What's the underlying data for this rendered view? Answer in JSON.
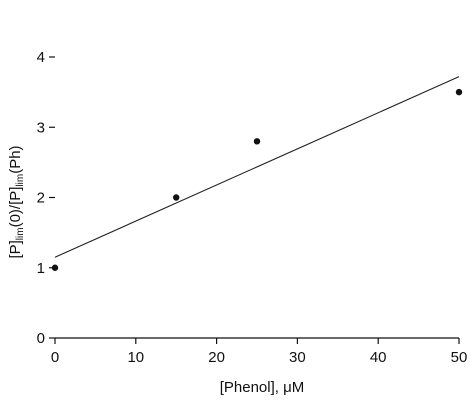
{
  "chart_data": {
    "type": "scatter",
    "title": "",
    "xlabel": "[Phenol], μM",
    "ylabel_parts": {
      "p1": "[P]",
      "s1": "lim",
      "p2": "(0)/[P]",
      "s2": "lim",
      "p3": "(Ph)"
    },
    "xlim": [
      0,
      50
    ],
    "ylim": [
      0,
      4
    ],
    "x_ticks": [
      0,
      10,
      20,
      30,
      40,
      50
    ],
    "y_ticks": [
      0,
      1,
      2,
      3,
      4
    ],
    "grid": false,
    "legend": "none",
    "series": [
      {
        "points": [
          {
            "x": 0,
            "y": 1.0
          },
          {
            "x": 15,
            "y": 2.0
          },
          {
            "x": 25,
            "y": 2.8
          },
          {
            "x": 50,
            "y": 3.5
          }
        ]
      }
    ],
    "fit_line": {
      "x": [
        0,
        50
      ],
      "y": [
        1.15,
        3.72
      ]
    },
    "colors": {
      "axis": "#111111",
      "points": "#111111",
      "line": "#222222"
    }
  }
}
